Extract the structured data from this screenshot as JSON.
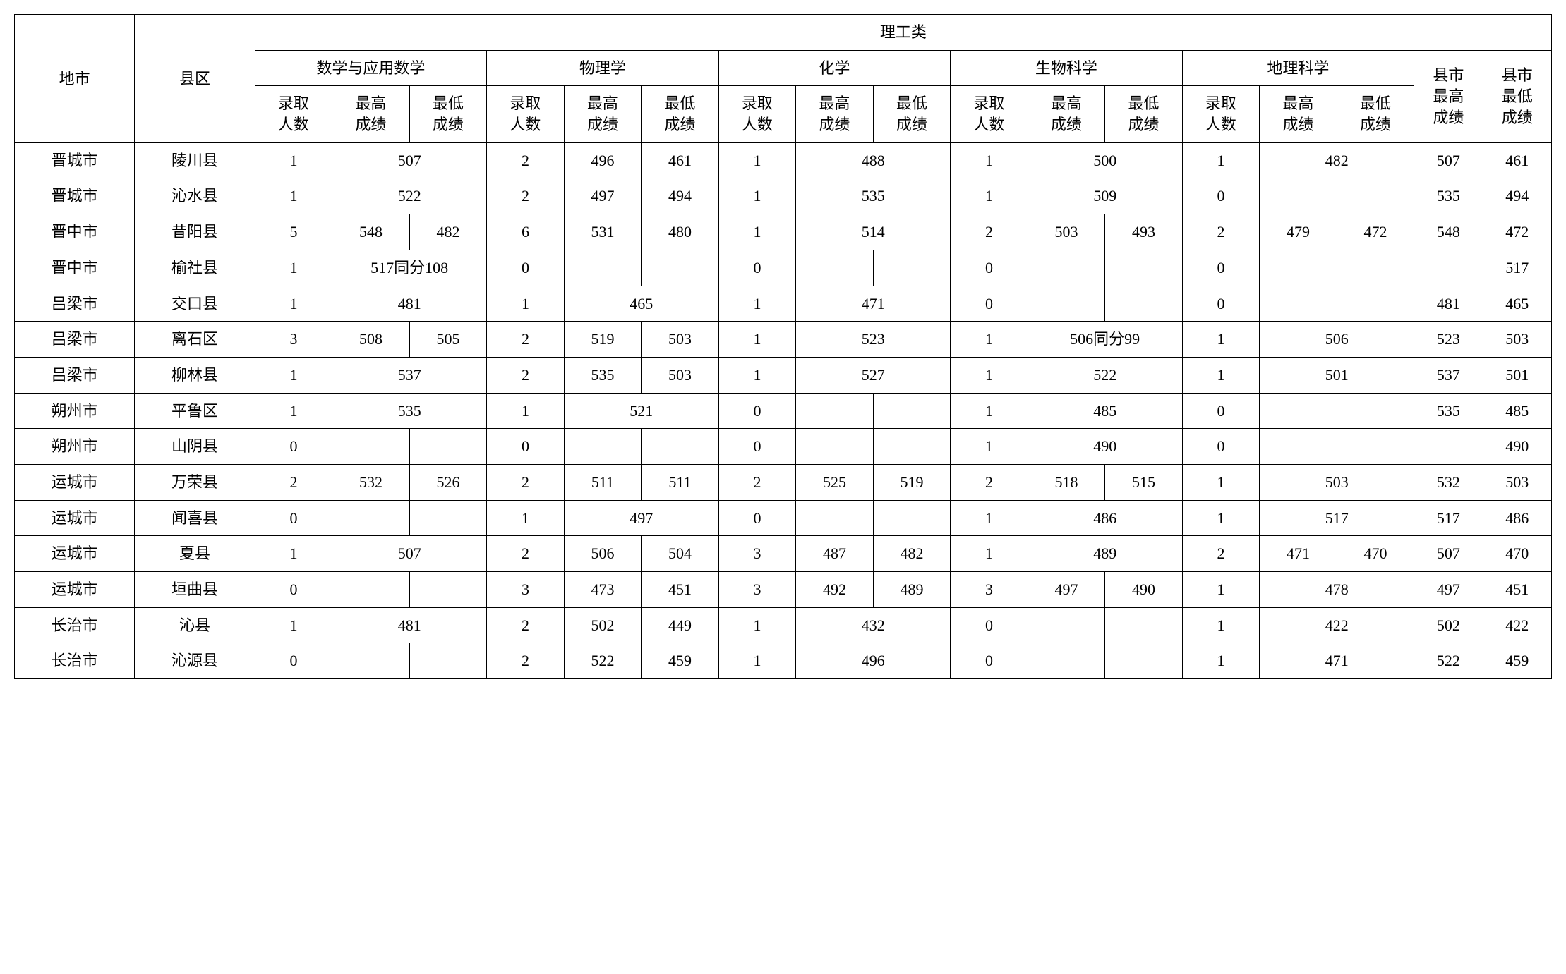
{
  "headers": {
    "city": "地市",
    "county": "县区",
    "category": "理工类",
    "subjects": [
      "数学与应用数学",
      "物理学",
      "化学",
      "生物科学",
      "地理科学"
    ],
    "sub_cols": [
      "录取人数",
      "最高成绩",
      "最低成绩"
    ],
    "county_high": "县市最高成绩",
    "county_low": "县市最低成绩"
  },
  "rows": [
    {
      "city": "晋城市",
      "county": "陵川县",
      "subj": [
        {
          "n": "1",
          "merged": "507"
        },
        {
          "n": "2",
          "hi": "496",
          "lo": "461"
        },
        {
          "n": "1",
          "merged": "488"
        },
        {
          "n": "1",
          "merged": "500"
        },
        {
          "n": "1",
          "merged": "482"
        }
      ],
      "hi": "507",
      "lo": "461"
    },
    {
      "city": "晋城市",
      "county": "沁水县",
      "subj": [
        {
          "n": "1",
          "merged": "522"
        },
        {
          "n": "2",
          "hi": "497",
          "lo": "494"
        },
        {
          "n": "1",
          "merged": "535"
        },
        {
          "n": "1",
          "merged": "509"
        },
        {
          "n": "0",
          "hi": "",
          "lo": ""
        }
      ],
      "hi": "535",
      "lo": "494"
    },
    {
      "city": "晋中市",
      "county": "昔阳县",
      "subj": [
        {
          "n": "5",
          "hi": "548",
          "lo": "482"
        },
        {
          "n": "6",
          "hi": "531",
          "lo": "480"
        },
        {
          "n": "1",
          "merged": "514"
        },
        {
          "n": "2",
          "hi": "503",
          "lo": "493"
        },
        {
          "n": "2",
          "hi": "479",
          "lo": "472"
        }
      ],
      "hi": "548",
      "lo": "472"
    },
    {
      "city": "晋中市",
      "county": "榆社县",
      "subj": [
        {
          "n": "1",
          "merged": "517同分108"
        },
        {
          "n": "0",
          "hi": "",
          "lo": ""
        },
        {
          "n": "0",
          "hi": "",
          "lo": ""
        },
        {
          "n": "0",
          "hi": "",
          "lo": ""
        },
        {
          "n": "0",
          "hi": "",
          "lo": ""
        }
      ],
      "hi": "",
      "lo": "517"
    },
    {
      "city": "吕梁市",
      "county": "交口县",
      "subj": [
        {
          "n": "1",
          "merged": "481"
        },
        {
          "n": "1",
          "merged": "465"
        },
        {
          "n": "1",
          "merged": "471"
        },
        {
          "n": "0",
          "hi": "",
          "lo": ""
        },
        {
          "n": "0",
          "hi": "",
          "lo": ""
        }
      ],
      "hi": "481",
      "lo": "465"
    },
    {
      "city": "吕梁市",
      "county": "离石区",
      "subj": [
        {
          "n": "3",
          "hi": "508",
          "lo": "505"
        },
        {
          "n": "2",
          "hi": "519",
          "lo": "503"
        },
        {
          "n": "1",
          "merged": "523"
        },
        {
          "n": "1",
          "merged": "506同分99"
        },
        {
          "n": "1",
          "merged": "506"
        }
      ],
      "hi": "523",
      "lo": "503"
    },
    {
      "city": "吕梁市",
      "county": "柳林县",
      "subj": [
        {
          "n": "1",
          "merged": "537"
        },
        {
          "n": "2",
          "hi": "535",
          "lo": "503"
        },
        {
          "n": "1",
          "merged": "527"
        },
        {
          "n": "1",
          "merged": "522"
        },
        {
          "n": "1",
          "merged": "501"
        }
      ],
      "hi": "537",
      "lo": "501"
    },
    {
      "city": "朔州市",
      "county": "平鲁区",
      "subj": [
        {
          "n": "1",
          "merged": "535"
        },
        {
          "n": "1",
          "merged": "521"
        },
        {
          "n": "0",
          "hi": "",
          "lo": ""
        },
        {
          "n": "1",
          "merged": "485"
        },
        {
          "n": "0",
          "hi": "",
          "lo": ""
        }
      ],
      "hi": "535",
      "lo": "485"
    },
    {
      "city": "朔州市",
      "county": "山阴县",
      "subj": [
        {
          "n": "0",
          "hi": "",
          "lo": ""
        },
        {
          "n": "0",
          "hi": "",
          "lo": ""
        },
        {
          "n": "0",
          "hi": "",
          "lo": ""
        },
        {
          "n": "1",
          "merged": "490"
        },
        {
          "n": "0",
          "hi": "",
          "lo": ""
        }
      ],
      "hi": "",
      "lo": "490"
    },
    {
      "city": "运城市",
      "county": "万荣县",
      "subj": [
        {
          "n": "2",
          "hi": "532",
          "lo": "526"
        },
        {
          "n": "2",
          "hi": "511",
          "lo": "511"
        },
        {
          "n": "2",
          "hi": "525",
          "lo": "519"
        },
        {
          "n": "2",
          "hi": "518",
          "lo": "515"
        },
        {
          "n": "1",
          "merged": "503"
        }
      ],
      "hi": "532",
      "lo": "503"
    },
    {
      "city": "运城市",
      "county": "闻喜县",
      "subj": [
        {
          "n": "0",
          "hi": "",
          "lo": ""
        },
        {
          "n": "1",
          "merged": "497"
        },
        {
          "n": "0",
          "hi": "",
          "lo": ""
        },
        {
          "n": "1",
          "merged": "486"
        },
        {
          "n": "1",
          "merged": "517"
        }
      ],
      "hi": "517",
      "lo": "486"
    },
    {
      "city": "运城市",
      "county": "夏县",
      "subj": [
        {
          "n": "1",
          "merged": "507"
        },
        {
          "n": "2",
          "hi": "506",
          "lo": "504"
        },
        {
          "n": "3",
          "hi": "487",
          "lo": "482"
        },
        {
          "n": "1",
          "merged": "489"
        },
        {
          "n": "2",
          "hi": "471",
          "lo": "470"
        }
      ],
      "hi": "507",
      "lo": "470"
    },
    {
      "city": "运城市",
      "county": "垣曲县",
      "subj": [
        {
          "n": "0",
          "hi": "",
          "lo": ""
        },
        {
          "n": "3",
          "hi": "473",
          "lo": "451"
        },
        {
          "n": "3",
          "hi": "492",
          "lo": "489"
        },
        {
          "n": "3",
          "hi": "497",
          "lo": "490"
        },
        {
          "n": "1",
          "merged": "478"
        }
      ],
      "hi": "497",
      "lo": "451"
    },
    {
      "city": "长治市",
      "county": "沁县",
      "subj": [
        {
          "n": "1",
          "merged": "481"
        },
        {
          "n": "2",
          "hi": "502",
          "lo": "449"
        },
        {
          "n": "1",
          "merged": "432"
        },
        {
          "n": "0",
          "hi": "",
          "lo": ""
        },
        {
          "n": "1",
          "merged": "422"
        }
      ],
      "hi": "502",
      "lo": "422"
    },
    {
      "city": "长治市",
      "county": "沁源县",
      "subj": [
        {
          "n": "0",
          "hi": "",
          "lo": ""
        },
        {
          "n": "2",
          "hi": "522",
          "lo": "459"
        },
        {
          "n": "1",
          "merged": "496"
        },
        {
          "n": "0",
          "hi": "",
          "lo": ""
        },
        {
          "n": "1",
          "merged": "471"
        }
      ],
      "hi": "522",
      "lo": "459"
    }
  ]
}
